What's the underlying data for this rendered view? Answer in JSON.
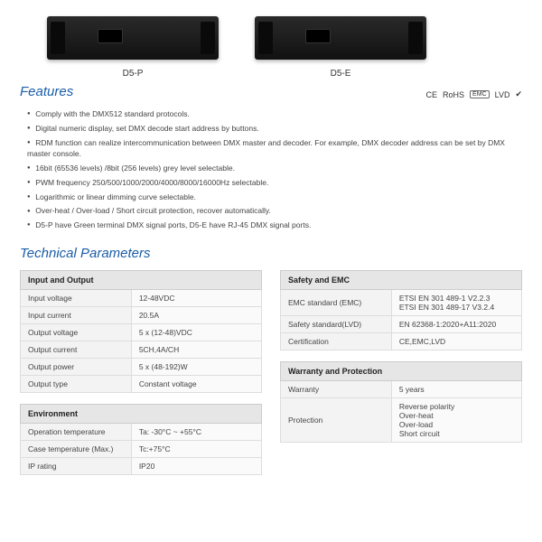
{
  "products": [
    {
      "label": "D5-P"
    },
    {
      "label": "D5-E"
    }
  ],
  "headings": {
    "features": "Features",
    "tech": "Technical Parameters"
  },
  "certs": [
    "CE",
    "RoHS",
    "EMC",
    "LVD",
    "✔"
  ],
  "features": [
    "Comply with the DMX512 standard protocols.",
    "Digital numeric display, set DMX decode start address by buttons.",
    "RDM function can realize intercommunication between DMX master and decoder. For example, DMX decoder address can be set by DMX master console.",
    "16bit (65536 levels) /8bit (256 levels) grey level selectable.",
    "PWM frequency 250/500/1000/2000/4000/8000/16000Hz selectable.",
    "Logarithmic or linear dimming curve selectable.",
    "Over-heat / Over-load / Short circuit protection, recover automatically.",
    "D5-P have Green terminal DMX signal ports, D5-E have RJ-45 DMX signal ports."
  ],
  "tables": {
    "io": {
      "title": "Input and Output",
      "rows": [
        [
          "Input voltage",
          "12-48VDC"
        ],
        [
          "Input current",
          "20.5A"
        ],
        [
          "Output voltage",
          "5 x (12-48)VDC"
        ],
        [
          "Output current",
          "5CH,4A/CH"
        ],
        [
          "Output power",
          "5 x (48-192)W"
        ],
        [
          "Output type",
          "Constant voltage"
        ]
      ]
    },
    "env": {
      "title": "Environment",
      "rows": [
        [
          "Operation temperature",
          "Ta: -30°C ~ +55°C"
        ],
        [
          "Case temperature (Max.)",
          "Tc:+75°C"
        ],
        [
          "IP rating",
          "IP20"
        ]
      ]
    },
    "safety": {
      "title": "Safety and EMC",
      "rows": [
        [
          "EMC standard (EMC)",
          "ETSI EN 301 489-1 V2.2.3\nETSI EN 301 489-17 V3.2.4"
        ],
        [
          "Safety standard(LVD)",
          "EN 62368-1:2020+A11:2020"
        ],
        [
          "Certification",
          "CE,EMC,LVD"
        ]
      ]
    },
    "warranty": {
      "title": "Warranty and Protection",
      "rows": [
        [
          "Warranty",
          "5 years"
        ],
        [
          "Protection",
          "Reverse polarity\nOver-heat\nOver-load\nShort circuit"
        ]
      ]
    }
  }
}
